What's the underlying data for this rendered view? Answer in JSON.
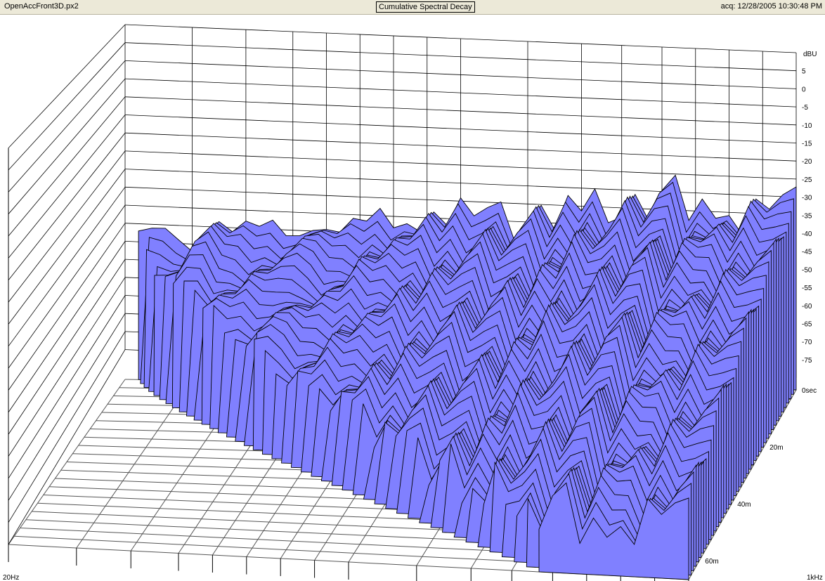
{
  "header": {
    "file_name": "OpenAccFront3D.px2",
    "title": "Cumulative Spectral Decay",
    "acquired": "acq: 12/28/2005 10:30:48 PM"
  },
  "chart_data": {
    "type": "waterfall",
    "title": "Cumulative Spectral Decay",
    "x_axis": {
      "min_label": "20Hz",
      "max_label": "1kHz",
      "scale": "log"
    },
    "y_axis": {
      "unit": "dBU",
      "ticks": [
        "5",
        "0",
        "-5",
        "-10",
        "-15",
        "-20",
        "-25",
        "-30",
        "-35",
        "-40",
        "-45",
        "-50",
        "-55",
        "-60",
        "-65",
        "-70",
        "-75"
      ],
      "ylim": [
        -80,
        10
      ]
    },
    "z_axis": {
      "ticks": [
        "0sec",
        "20m",
        "40m",
        "60m"
      ]
    },
    "grid": true,
    "fill_color": "#8080ff",
    "slice_count": 44,
    "first_slice_profile": [
      -41,
      -41,
      -41,
      -40,
      -41,
      -42,
      -36,
      -34,
      -39,
      -38,
      -40,
      -37,
      -39,
      -37,
      -35,
      -36,
      -39,
      -37,
      -38,
      -33,
      -36,
      -33,
      -35,
      -31,
      -37,
      -31,
      -36,
      -32,
      -28,
      -37,
      -33,
      -29,
      -38,
      -30,
      -34,
      -26,
      -33,
      -30,
      -24,
      -33,
      -27,
      -24,
      -36,
      -28,
      -31,
      -29,
      -35,
      -27,
      -32,
      -29,
      -26
    ]
  }
}
